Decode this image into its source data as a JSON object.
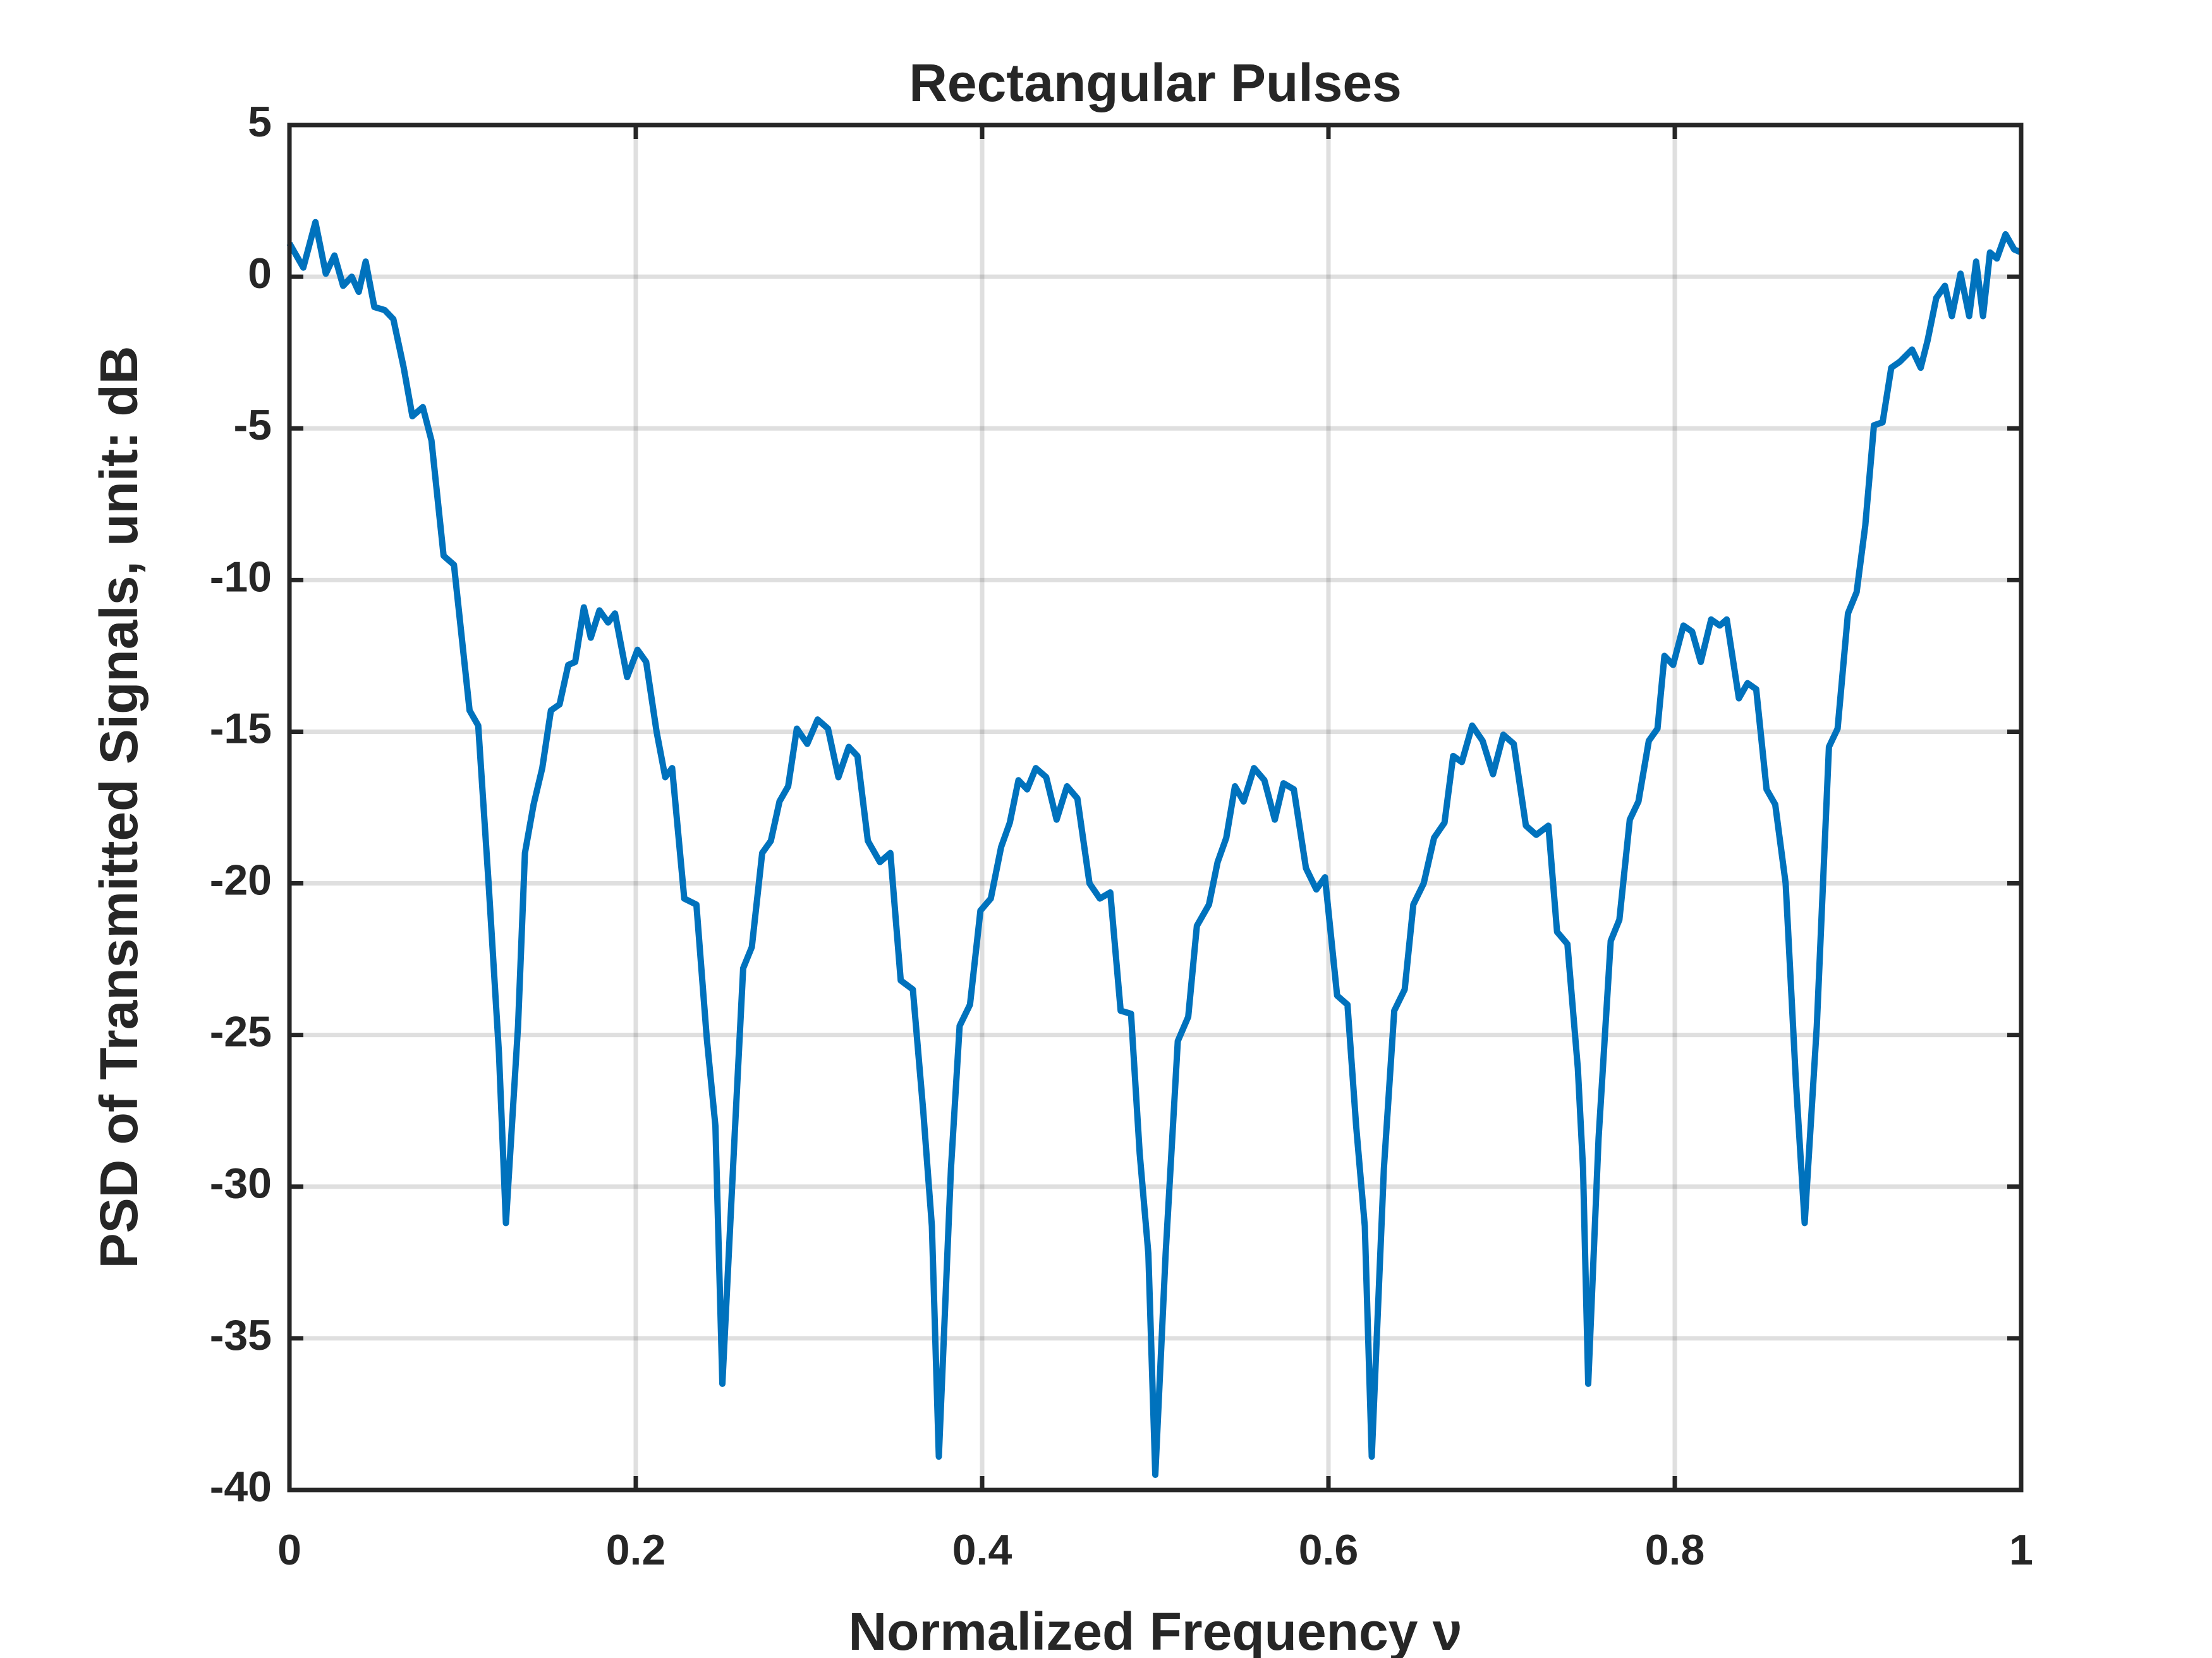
{
  "chart_data": {
    "type": "line",
    "title": "Rectangular Pulses",
    "x_label": "Normalized Frequency ν",
    "y_label": "PSD of Transmitted Signals, unit: dB",
    "color": "#0072bd",
    "grid": true,
    "xlim": [
      0,
      1
    ],
    "xticks": [
      0,
      0.2,
      0.4,
      0.6,
      0.8,
      1
    ],
    "ylim": [
      -40,
      5
    ],
    "yticks": [
      -40,
      -35,
      -30,
      -25,
      -20,
      -15,
      -10,
      -5,
      0,
      5
    ],
    "x": [
      0,
      0.008,
      0.015,
      0.021,
      0.026,
      0.031,
      0.036,
      0.04,
      0.044,
      0.049,
      0.055,
      0.06,
      0.066,
      0.071,
      0.077,
      0.082,
      0.089,
      0.095,
      0.104,
      0.109,
      0.115,
      0.121,
      0.125,
      0.132,
      0.136,
      0.141,
      0.146,
      0.151,
      0.156,
      0.161,
      0.165,
      0.17,
      0.174,
      0.179,
      0.184,
      0.188,
      0.195,
      0.201,
      0.206,
      0.212,
      0.217,
      0.221,
      0.228,
      0.235,
      0.241,
      0.246,
      0.25,
      0.257,
      0.262,
      0.267,
      0.273,
      0.278,
      0.283,
      0.288,
      0.293,
      0.299,
      0.305,
      0.311,
      0.317,
      0.323,
      0.328,
      0.334,
      0.341,
      0.347,
      0.353,
      0.36,
      0.366,
      0.371,
      0.375,
      0.382,
      0.387,
      0.393,
      0.399,
      0.405,
      0.411,
      0.416,
      0.421,
      0.426,
      0.431,
      0.437,
      0.443,
      0.449,
      0.455,
      0.462,
      0.468,
      0.474,
      0.48,
      0.486,
      0.491,
      0.496,
      0.5,
      0.506,
      0.513,
      0.519,
      0.524,
      0.531,
      0.536,
      0.541,
      0.546,
      0.551,
      0.557,
      0.563,
      0.569,
      0.574,
      0.58,
      0.587,
      0.593,
      0.598,
      0.605,
      0.611,
      0.616,
      0.621,
      0.625,
      0.632,
      0.638,
      0.644,
      0.649,
      0.655,
      0.661,
      0.667,
      0.672,
      0.677,
      0.683,
      0.689,
      0.695,
      0.701,
      0.707,
      0.714,
      0.72,
      0.727,
      0.732,
      0.738,
      0.744,
      0.747,
      0.75,
      0.756,
      0.763,
      0.768,
      0.774,
      0.779,
      0.785,
      0.79,
      0.794,
      0.799,
      0.805,
      0.81,
      0.815,
      0.821,
      0.826,
      0.83,
      0.837,
      0.842,
      0.847,
      0.853,
      0.858,
      0.864,
      0.87,
      0.875,
      0.882,
      0.889,
      0.894,
      0.9,
      0.905,
      0.91,
      0.915,
      0.92,
      0.925,
      0.93,
      0.937,
      0.942,
      0.946,
      0.951,
      0.956,
      0.96,
      0.965,
      0.97,
      0.974,
      0.978,
      0.982,
      0.986,
      0.991,
      0.996,
      1
    ],
    "values": [
      1.1,
      0.3,
      1.8,
      0.1,
      0.7,
      -0.3,
      0,
      -0.5,
      0.5,
      -1,
      -1.1,
      -1.4,
      -3,
      -4.6,
      -4.3,
      -5.4,
      -9.2,
      -9.5,
      -14.3,
      -14.8,
      -20,
      -25.6,
      -31.2,
      -24.7,
      -19,
      -17.4,
      -16.2,
      -14.3,
      -14.1,
      -12.8,
      -12.7,
      -10.9,
      -11.9,
      -11,
      -11.4,
      -11.1,
      -13.2,
      -12.3,
      -12.7,
      -15,
      -16.5,
      -16.2,
      -20.5,
      -20.7,
      -25.1,
      -28,
      -36.5,
      -28.4,
      -22.8,
      -22.1,
      -19,
      -18.6,
      -17.3,
      -16.8,
      -14.9,
      -15.4,
      -14.6,
      -14.9,
      -16.5,
      -15.5,
      -15.8,
      -18.6,
      -19.3,
      -19,
      -23.2,
      -23.5,
      -27.5,
      -31.3,
      -38.9,
      -29.4,
      -24.7,
      -24,
      -20.9,
      -20.5,
      -18.8,
      -18,
      -16.6,
      -16.9,
      -16.2,
      -16.5,
      -17.9,
      -16.8,
      -17.2,
      -20,
      -20.5,
      -20.3,
      -24.2,
      -24.3,
      -28.9,
      -32.2,
      -39.5,
      -32.2,
      -25.2,
      -24.4,
      -21.4,
      -20.7,
      -19.3,
      -18.5,
      -16.8,
      -17.3,
      -16.2,
      -16.6,
      -17.9,
      -16.7,
      -16.9,
      -19.5,
      -20.2,
      -19.8,
      -23.7,
      -24,
      -28,
      -31.3,
      -38.9,
      -29.4,
      -24.2,
      -23.5,
      -20.7,
      -20,
      -18.5,
      -18,
      -15.8,
      -16,
      -14.8,
      -15.3,
      -16.4,
      -15.1,
      -15.4,
      -18.1,
      -18.4,
      -18.1,
      -21.6,
      -22,
      -26.1,
      -29.4,
      -36.5,
      -28.4,
      -21.9,
      -21.2,
      -17.9,
      -17.3,
      -15.3,
      -14.9,
      -12.5,
      -12.8,
      -11.5,
      -11.7,
      -12.7,
      -11.3,
      -11.5,
      -11.3,
      -13.9,
      -13.4,
      -13.6,
      -16.9,
      -17.4,
      -20,
      -26.6,
      -31.2,
      -24.7,
      -15.5,
      -14.9,
      -11.1,
      -10.4,
      -8.2,
      -4.9,
      -4.8,
      -3,
      -2.8,
      -2.4,
      -3,
      -2.1,
      -0.7,
      -0.3,
      -1.3,
      0.1,
      -1.3,
      0.5,
      -1.3,
      0.8,
      0.6,
      1.4,
      0.9,
      0.8
    ]
  }
}
